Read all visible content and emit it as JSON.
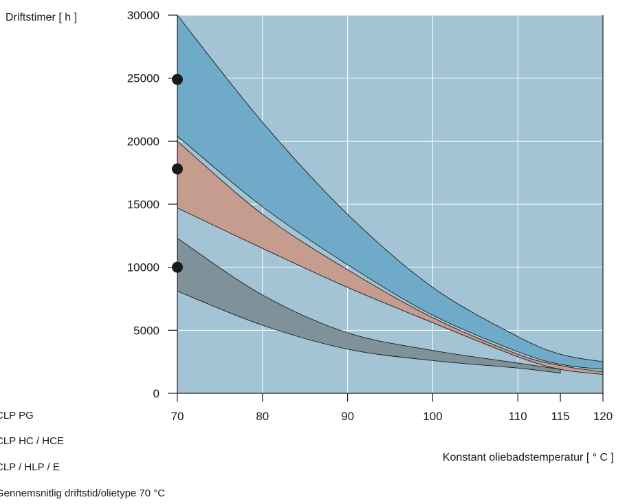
{
  "chart_data": {
    "type": "area",
    "ylabel": "Driftstimer   [ h ]",
    "xlabel": "Konstant oliebadstemperatur  [ ° C ]",
    "x_ticks": [
      70,
      80,
      90,
      100,
      110,
      115,
      120
    ],
    "y_ticks": [
      0,
      5000,
      10000,
      15000,
      20000,
      25000,
      30000
    ],
    "xlim": [
      70,
      120
    ],
    "ylim": [
      0,
      30000
    ],
    "grid": true,
    "colors": {
      "plot_background": "#a3c4d4",
      "gridline": "#ffffff",
      "clp_pg": "#6faac8",
      "clp_hc_hce": "#c59c8e",
      "clp_hlp_e": "#7f9299",
      "marker": "#1a1a1a",
      "outline": "#1a1a1a"
    },
    "series": [
      {
        "name": "CLP PG",
        "upper": [
          [
            70,
            30000
          ],
          [
            80,
            21500
          ],
          [
            90,
            14200
          ],
          [
            100,
            8400
          ],
          [
            110,
            4500
          ],
          [
            115,
            3100
          ],
          [
            120,
            2500
          ]
        ],
        "lower": [
          [
            70,
            20400
          ],
          [
            80,
            14800
          ],
          [
            90,
            10200
          ],
          [
            100,
            6200
          ],
          [
            110,
            3300
          ],
          [
            115,
            2300
          ],
          [
            120,
            1900
          ]
        ]
      },
      {
        "name": "CLP HC / HCE",
        "upper": [
          [
            70,
            20000
          ],
          [
            80,
            14200
          ],
          [
            90,
            9800
          ],
          [
            100,
            6000
          ],
          [
            110,
            3100
          ],
          [
            115,
            2200
          ],
          [
            120,
            1700
          ]
        ],
        "lower": [
          [
            70,
            14700
          ],
          [
            80,
            11500
          ],
          [
            90,
            8400
          ],
          [
            100,
            5600
          ],
          [
            110,
            2900
          ],
          [
            115,
            1900
          ],
          [
            120,
            1500
          ]
        ]
      },
      {
        "name": "CLP / HLP / E",
        "upper": [
          [
            70,
            12300
          ],
          [
            80,
            7800
          ],
          [
            90,
            4800
          ],
          [
            100,
            3400
          ],
          [
            110,
            2400
          ],
          [
            115,
            1900
          ]
        ],
        "lower": [
          [
            70,
            8100
          ],
          [
            80,
            5400
          ],
          [
            90,
            3500
          ],
          [
            100,
            2600
          ],
          [
            110,
            2000
          ],
          [
            115,
            1600
          ]
        ]
      }
    ],
    "markers": {
      "label": "Gennemsnitlig driftstid/olietype 70 °C",
      "points": [
        [
          70,
          24900
        ],
        [
          70,
          17800
        ],
        [
          70,
          10000
        ]
      ]
    }
  }
}
